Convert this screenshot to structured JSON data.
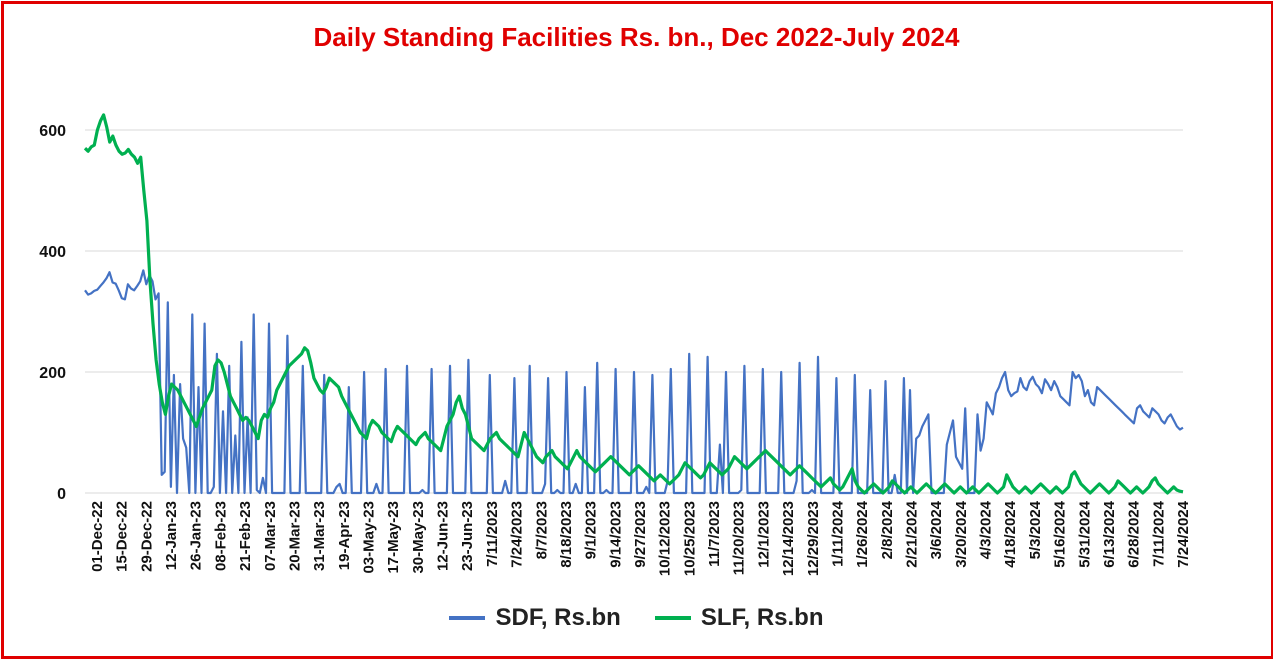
{
  "chart_data": {
    "type": "line",
    "title": "Daily Standing Facilities Rs. bn., Dec 2022-July 2024",
    "xlabel": "",
    "ylabel": "",
    "ylim": [
      0,
      600
    ],
    "yticks": [
      0,
      200,
      400,
      600
    ],
    "grid": true,
    "legend_position": "bottom",
    "colors": {
      "title": "#e00000",
      "frame": "#e00000",
      "SDF": "#4472c4",
      "SLF": "#00b050"
    },
    "x_tick_labels": [
      "01-Dec-22",
      "15-Dec-22",
      "29-Dec-22",
      "12-Jan-23",
      "26-Jan-23",
      "08-Feb-23",
      "21-Feb-23",
      "07-Mar-23",
      "20-Mar-23",
      "31-Mar-23",
      "19-Apr-23",
      "03-May-23",
      "17-May-23",
      "30-May-23",
      "12-Jun-23",
      "23-Jun-23",
      "7/11/2023",
      "7/24/2023",
      "8/7/2023",
      "8/18/2023",
      "9/1/2023",
      "9/14/2023",
      "9/27/2023",
      "10/12/2023",
      "10/25/2023",
      "11/7/2023",
      "11/20/2023",
      "12/1/2023",
      "12/14/2023",
      "12/29/2023",
      "1/11/2024",
      "1/26/2024",
      "2/8/2024",
      "2/21/2024",
      "3/6/2024",
      "3/20/2024",
      "4/3/2024",
      "4/18/2024",
      "5/3/2024",
      "5/16/2024",
      "5/31/2024",
      "6/13/2024",
      "6/28/2024",
      "7/11/2024",
      "7/24/2024"
    ],
    "series": [
      {
        "name": "SDF, Rs.bn",
        "values": [
          335,
          328,
          330,
          334,
          336,
          342,
          348,
          355,
          365,
          348,
          346,
          335,
          322,
          320,
          345,
          338,
          335,
          342,
          350,
          368,
          345,
          360,
          350,
          320,
          330,
          30,
          35,
          315,
          10,
          195,
          0,
          180,
          90,
          75,
          0,
          295,
          0,
          175,
          0,
          280,
          0,
          0,
          10,
          230,
          0,
          135,
          0,
          210,
          0,
          95,
          0,
          250,
          0,
          125,
          0,
          295,
          5,
          0,
          25,
          0,
          280,
          0,
          0,
          0,
          0,
          0,
          260,
          0,
          0,
          0,
          0,
          210,
          0,
          0,
          0,
          0,
          0,
          0,
          195,
          0,
          0,
          0,
          10,
          15,
          0,
          0,
          175,
          0,
          0,
          0,
          0,
          200,
          0,
          0,
          0,
          15,
          0,
          0,
          205,
          0,
          0,
          0,
          0,
          0,
          0,
          210,
          0,
          0,
          0,
          0,
          5,
          0,
          0,
          205,
          0,
          0,
          0,
          0,
          0,
          210,
          0,
          0,
          0,
          0,
          0,
          220,
          0,
          0,
          0,
          0,
          0,
          0,
          195,
          0,
          0,
          0,
          0,
          20,
          0,
          0,
          190,
          0,
          0,
          0,
          0,
          210,
          0,
          0,
          0,
          0,
          15,
          190,
          0,
          0,
          5,
          0,
          0,
          200,
          0,
          0,
          15,
          0,
          0,
          175,
          0,
          0,
          0,
          215,
          0,
          0,
          5,
          0,
          0,
          205,
          0,
          0,
          0,
          0,
          0,
          200,
          0,
          0,
          0,
          10,
          0,
          195,
          0,
          0,
          0,
          0,
          20,
          205,
          0,
          0,
          0,
          0,
          0,
          230,
          0,
          0,
          0,
          0,
          0,
          225,
          0,
          0,
          0,
          80,
          0,
          200,
          0,
          0,
          0,
          0,
          5,
          210,
          0,
          0,
          0,
          0,
          0,
          205,
          0,
          0,
          0,
          0,
          0,
          200,
          0,
          0,
          0,
          0,
          20,
          215,
          0,
          0,
          0,
          5,
          0,
          225,
          0,
          0,
          0,
          0,
          0,
          190,
          0,
          0,
          0,
          0,
          0,
          195,
          0,
          0,
          0,
          0,
          170,
          0,
          0,
          0,
          0,
          185,
          0,
          0,
          30,
          0,
          0,
          190,
          0,
          170,
          0,
          90,
          95,
          110,
          120,
          130,
          0,
          0,
          0,
          0,
          0,
          80,
          100,
          120,
          60,
          50,
          40,
          140,
          0,
          0,
          0,
          130,
          70,
          90,
          150,
          140,
          130,
          165,
          175,
          190,
          200,
          170,
          160,
          165,
          168,
          190,
          175,
          170,
          185,
          192,
          180,
          175,
          165,
          188,
          180,
          170,
          185,
          175,
          160,
          155,
          150,
          145,
          200,
          190,
          195,
          185,
          160,
          170,
          150,
          145,
          175,
          170,
          165,
          160,
          155,
          150,
          145,
          140,
          135,
          130,
          125,
          120,
          115,
          140,
          145,
          135,
          130,
          125,
          140,
          135,
          130,
          120,
          115,
          125,
          130,
          120,
          110,
          105,
          108
        ]
      },
      {
        "name": "SLF, Rs.bn",
        "values": [
          570,
          565,
          572,
          575,
          600,
          615,
          625,
          605,
          580,
          590,
          575,
          565,
          560,
          562,
          568,
          560,
          555,
          545,
          555,
          500,
          450,
          350,
          280,
          220,
          180,
          150,
          130,
          160,
          180,
          175,
          170,
          160,
          150,
          140,
          130,
          120,
          110,
          125,
          140,
          150,
          160,
          170,
          210,
          220,
          215,
          200,
          180,
          160,
          150,
          140,
          130,
          120,
          125,
          120,
          110,
          100,
          90,
          120,
          130,
          125,
          140,
          150,
          170,
          180,
          190,
          200,
          210,
          215,
          220,
          225,
          230,
          240,
          235,
          215,
          190,
          180,
          170,
          165,
          175,
          190,
          185,
          180,
          175,
          160,
          150,
          140,
          130,
          120,
          110,
          100,
          95,
          90,
          110,
          120,
          115,
          110,
          100,
          95,
          90,
          85,
          100,
          110,
          105,
          100,
          95,
          90,
          85,
          80,
          90,
          95,
          100,
          90,
          85,
          80,
          75,
          70,
          90,
          110,
          120,
          130,
          150,
          160,
          140,
          130,
          110,
          90,
          85,
          80,
          75,
          70,
          80,
          90,
          95,
          100,
          90,
          85,
          80,
          75,
          70,
          65,
          60,
          80,
          100,
          90,
          80,
          70,
          60,
          55,
          50,
          60,
          65,
          70,
          60,
          55,
          50,
          45,
          40,
          50,
          60,
          70,
          60,
          55,
          50,
          45,
          40,
          35,
          40,
          45,
          50,
          55,
          60,
          55,
          50,
          45,
          40,
          35,
          30,
          35,
          40,
          45,
          40,
          35,
          30,
          25,
          20,
          25,
          30,
          25,
          20,
          15,
          20,
          25,
          30,
          40,
          50,
          45,
          40,
          35,
          30,
          25,
          30,
          40,
          50,
          45,
          40,
          35,
          30,
          35,
          40,
          50,
          60,
          55,
          50,
          45,
          40,
          45,
          50,
          55,
          60,
          65,
          70,
          65,
          60,
          55,
          50,
          45,
          40,
          35,
          30,
          35,
          40,
          45,
          40,
          35,
          30,
          25,
          20,
          15,
          10,
          15,
          20,
          25,
          15,
          10,
          5,
          10,
          20,
          30,
          40,
          20,
          10,
          5,
          0,
          5,
          10,
          15,
          10,
          5,
          0,
          5,
          10,
          20,
          15,
          10,
          5,
          0,
          5,
          10,
          5,
          0,
          5,
          10,
          15,
          10,
          5,
          0,
          5,
          10,
          15,
          10,
          5,
          0,
          5,
          10,
          5,
          0,
          5,
          10,
          5,
          0,
          5,
          10,
          15,
          10,
          5,
          0,
          5,
          10,
          30,
          20,
          10,
          5,
          0,
          5,
          10,
          5,
          0,
          5,
          10,
          15,
          10,
          5,
          0,
          5,
          10,
          5,
          0,
          5,
          10,
          30,
          35,
          25,
          15,
          10,
          5,
          0,
          5,
          10,
          15,
          10,
          5,
          0,
          5,
          10,
          20,
          15,
          10,
          5,
          0,
          5,
          10,
          5,
          0,
          5,
          10,
          20,
          25,
          15,
          10,
          5,
          0,
          5,
          10,
          5,
          3,
          2
        ]
      }
    ]
  }
}
